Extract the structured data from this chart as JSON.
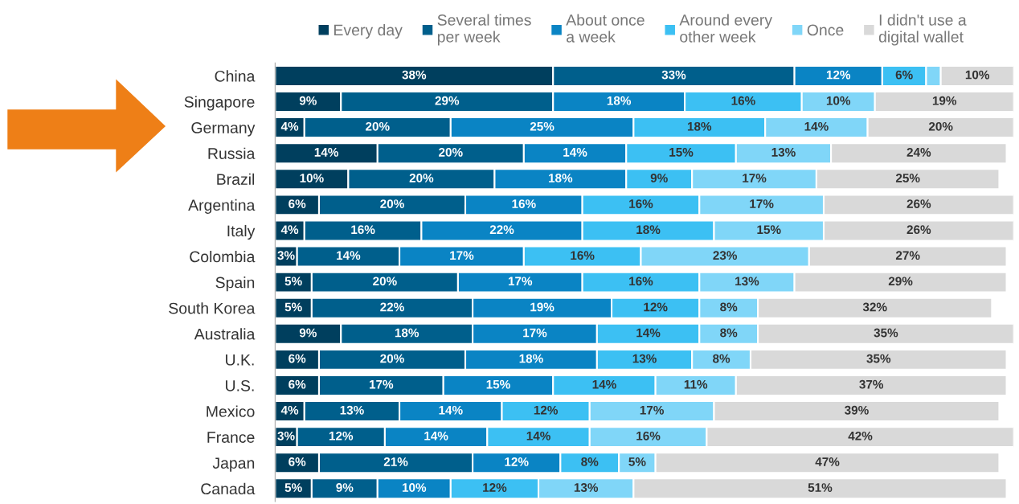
{
  "chart_data": {
    "type": "bar",
    "orientation": "horizontal",
    "stacked": true,
    "legend": "top",
    "categories": [
      "China",
      "Singapore",
      "Germany",
      "Russia",
      "Brazil",
      "Argentina",
      "Italy",
      "Colombia",
      "Spain",
      "South Korea",
      "Australia",
      "U.K.",
      "U.S.",
      "Mexico",
      "France",
      "Japan",
      "Canada"
    ],
    "series": [
      {
        "name": "Every day",
        "color": "#003f5e",
        "values": [
          38,
          9,
          4,
          14,
          10,
          6,
          4,
          3,
          5,
          5,
          9,
          6,
          6,
          4,
          3,
          6,
          5
        ],
        "value_labels": [
          "38%",
          "9%",
          "4%",
          "14%",
          "10%",
          "6%",
          "4%",
          "3%",
          "5%",
          "5%",
          "9%",
          "6%",
          "6%",
          "4%",
          "3%",
          "6%",
          "5%"
        ]
      },
      {
        "name": "Several times\nper week",
        "color": "#005f8c",
        "values": [
          33,
          29,
          20,
          20,
          20,
          20,
          16,
          14,
          20,
          22,
          18,
          20,
          17,
          13,
          12,
          21,
          9
        ],
        "value_labels": [
          "33%",
          "29%",
          "20%",
          "20%",
          "20%",
          "20%",
          "16%",
          "14%",
          "20%",
          "22%",
          "18%",
          "20%",
          "17%",
          "13%",
          "12%",
          "21%",
          "9%"
        ]
      },
      {
        "name": "About once\na week",
        "color": "#0a84c4",
        "values": [
          12,
          18,
          25,
          14,
          18,
          16,
          22,
          17,
          17,
          19,
          17,
          18,
          15,
          14,
          14,
          12,
          10
        ],
        "value_labels": [
          "12%",
          "18%",
          "25%",
          "14%",
          "18%",
          "16%",
          "22%",
          "17%",
          "17%",
          "19%",
          "17%",
          "18%",
          "15%",
          "14%",
          "14%",
          "12%",
          "10%"
        ]
      },
      {
        "name": "Around every\nother week",
        "color": "#3cc0f3",
        "values": [
          6,
          16,
          18,
          15,
          9,
          16,
          18,
          16,
          16,
          12,
          14,
          13,
          14,
          12,
          14,
          8,
          12
        ],
        "value_labels": [
          "6%",
          "16%",
          "18%",
          "15%",
          "9%",
          "16%",
          "18%",
          "16%",
          "16%",
          "12%",
          "14%",
          "13%",
          "14%",
          "12%",
          "14%",
          "8%",
          "12%"
        ]
      },
      {
        "name": "Once",
        "color": "#80d6f8",
        "values": [
          2,
          10,
          14,
          13,
          17,
          17,
          15,
          23,
          13,
          8,
          8,
          8,
          11,
          17,
          16,
          5,
          13
        ],
        "value_labels": [
          null,
          "10%",
          "14%",
          "13%",
          "17%",
          "17%",
          "15%",
          "23%",
          "13%",
          "8%",
          "8%",
          "8%",
          "11%",
          "17%",
          "16%",
          "5%",
          "13%"
        ]
      },
      {
        "name": "I didn't use a\ndigital wallet",
        "color": "#d9d9d9",
        "values": [
          10,
          19,
          20,
          24,
          25,
          26,
          26,
          27,
          29,
          32,
          35,
          35,
          37,
          39,
          42,
          47,
          51
        ],
        "value_labels": [
          "10%",
          "19%",
          "20%",
          "24%",
          "25%",
          "26%",
          "26%",
          "27%",
          "29%",
          "32%",
          "35%",
          "35%",
          "37%",
          "39%",
          "42%",
          "47%",
          "51%"
        ]
      }
    ]
  }
}
